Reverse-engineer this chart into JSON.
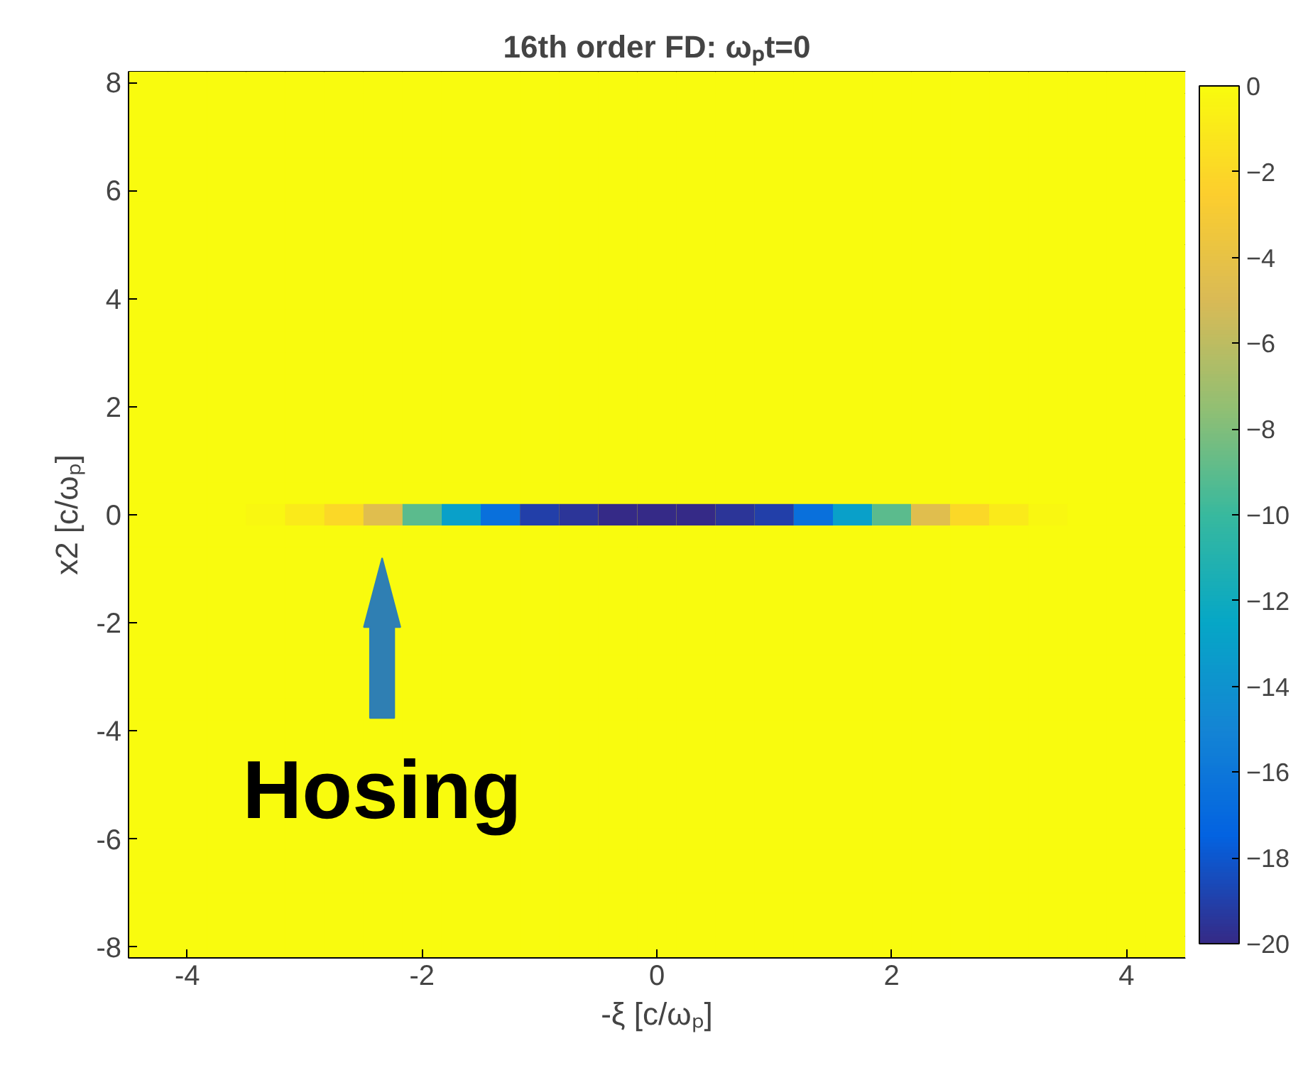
{
  "chart_data": {
    "type": "heatmap",
    "title": "16th order FD: ωₚt=0",
    "xlabel": "-ξ [c/ωₚ]",
    "ylabel": "x2 [c/ωₚ]",
    "clim": [
      -20,
      0
    ],
    "cticks": [
      -20,
      -18,
      -16,
      -14,
      -12,
      -10,
      -8,
      -6,
      -4,
      -2,
      0
    ],
    "annotations": [
      "Hosing"
    ],
    "categories": [
      null,
      "-4",
      null,
      null,
      null,
      null,
      null,
      "-2",
      null,
      null,
      null,
      null,
      null,
      "0",
      null,
      null,
      null,
      null,
      null,
      "2",
      null,
      null,
      null,
      null,
      null,
      "4",
      null
    ],
    "y_categories": [
      "8",
      null,
      null,
      null,
      null,
      "6",
      null,
      null,
      null,
      null,
      "4",
      null,
      null,
      null,
      null,
      "2",
      null,
      null,
      null,
      null,
      "0",
      null,
      null,
      null,
      null,
      "-2",
      null,
      null,
      null,
      null,
      "-4",
      null,
      null,
      null,
      null,
      "-6",
      null,
      null,
      null,
      null,
      "-8"
    ],
    "cells": [
      [
        0,
        0,
        0,
        0,
        0,
        0,
        0,
        0,
        0,
        0,
        0,
        0,
        0,
        0,
        0,
        0,
        0,
        0,
        0,
        0,
        0,
        0,
        0,
        0,
        0,
        0,
        0
      ],
      [
        0,
        0,
        0,
        0,
        0,
        0,
        0,
        0,
        0,
        0,
        0,
        0,
        0,
        0,
        0,
        0,
        0,
        0,
        0,
        0,
        0,
        0,
        0,
        0,
        0,
        0,
        0
      ],
      [
        0,
        0,
        0,
        0,
        0,
        0,
        0,
        0,
        0,
        0,
        0,
        0,
        0,
        0,
        0,
        0,
        0,
        0,
        0,
        0,
        0,
        0,
        0,
        0,
        0,
        0,
        0
      ],
      [
        0,
        0,
        0,
        0,
        0,
        0,
        0,
        0,
        0,
        0,
        0,
        0,
        0,
        0,
        0,
        0,
        0,
        0,
        0,
        0,
        0,
        0,
        0,
        0,
        0,
        0,
        0
      ],
      [
        0,
        0,
        0,
        0,
        0,
        0,
        0,
        0,
        0,
        0,
        0,
        0,
        0,
        0,
        0,
        0,
        0,
        0,
        0,
        0,
        0,
        0,
        0,
        0,
        0,
        0,
        0
      ],
      [
        0,
        0,
        0,
        0,
        0,
        0,
        0,
        0,
        0,
        0,
        0,
        0,
        0,
        0,
        0,
        0,
        0,
        0,
        0,
        0,
        0,
        0,
        0,
        0,
        0,
        0,
        0
      ],
      [
        0,
        0,
        0,
        0,
        0,
        0,
        0,
        0,
        0,
        0,
        0,
        0,
        0,
        0,
        0,
        0,
        0,
        0,
        0,
        0,
        0,
        0,
        0,
        0,
        0,
        0,
        0
      ],
      [
        0,
        0,
        0,
        0,
        0,
        0,
        0,
        0,
        0,
        0,
        0,
        0,
        0,
        0,
        0,
        0,
        0,
        0,
        0,
        0,
        0,
        0,
        0,
        0,
        0,
        0,
        0
      ],
      [
        0,
        0,
        0,
        0,
        0,
        0,
        0,
        0,
        0,
        0,
        0,
        0,
        0,
        0,
        0,
        0,
        0,
        0,
        0,
        0,
        0,
        0,
        0,
        0,
        0,
        0,
        0
      ],
      [
        0,
        0,
        0,
        0,
        0,
        0,
        0,
        0,
        0,
        0,
        0,
        0,
        0,
        0,
        0,
        0,
        0,
        0,
        0,
        0,
        0,
        0,
        0,
        0,
        0,
        0,
        0
      ],
      [
        0,
        0,
        0,
        0,
        0,
        0,
        0,
        0,
        0,
        0,
        0,
        0,
        0,
        0,
        0,
        0,
        0,
        0,
        0,
        0,
        0,
        0,
        0,
        0,
        0,
        0,
        0
      ],
      [
        0,
        0,
        0,
        0,
        0,
        0,
        0,
        0,
        0,
        0,
        0,
        0,
        0,
        0,
        0,
        0,
        0,
        0,
        0,
        0,
        0,
        0,
        0,
        0,
        0,
        0,
        0
      ],
      [
        0,
        0,
        0,
        0,
        0,
        0,
        0,
        0,
        0,
        0,
        0,
        0,
        0,
        0,
        0,
        0,
        0,
        0,
        0,
        0,
        0,
        0,
        0,
        0,
        0,
        0,
        0
      ],
      [
        0,
        0,
        0,
        0,
        0,
        0,
        0,
        0,
        0,
        0,
        0,
        0,
        0,
        0,
        0,
        0,
        0,
        0,
        0,
        0,
        0,
        0,
        0,
        0,
        0,
        0,
        0
      ],
      [
        0,
        0,
        0,
        0,
        0,
        0,
        0,
        0,
        0,
        0,
        0,
        0,
        0,
        0,
        0,
        0,
        0,
        0,
        0,
        0,
        0,
        0,
        0,
        0,
        0,
        0,
        0
      ],
      [
        0,
        0,
        0,
        0,
        0,
        0,
        0,
        0,
        0,
        0,
        0,
        0,
        0,
        0,
        0,
        0,
        0,
        0,
        0,
        0,
        0,
        0,
        0,
        0,
        0,
        0,
        0
      ],
      [
        0,
        0,
        0,
        0,
        0,
        0,
        0,
        0,
        0,
        0,
        0,
        0,
        0,
        0,
        0,
        0,
        0,
        0,
        0,
        0,
        0,
        0,
        0,
        0,
        0,
        0,
        0
      ],
      [
        0,
        0,
        0,
        0,
        0,
        0,
        0,
        0,
        0,
        0,
        0,
        0,
        0,
        0,
        0,
        0,
        0,
        0,
        0,
        0,
        0,
        0,
        0,
        0,
        0,
        0,
        0
      ],
      [
        0,
        0,
        0,
        0,
        0,
        0,
        0,
        0,
        0,
        0,
        0,
        0,
        0,
        0,
        0,
        0,
        0,
        0,
        0,
        0,
        0,
        0,
        0,
        0,
        0,
        0,
        0
      ],
      [
        0,
        0,
        0,
        0,
        0,
        0,
        0,
        0,
        0,
        0,
        0,
        0,
        0,
        0,
        0,
        0,
        0,
        0,
        0,
        0,
        0,
        0,
        0,
        0,
        0,
        0,
        0
      ],
      [
        0,
        0,
        0,
        -0.3,
        -1,
        -2,
        -4.5,
        -9,
        -13,
        -16.5,
        -19,
        -19.5,
        -20,
        -20,
        -20,
        -19.5,
        -19,
        -16.5,
        -13,
        -9,
        -4.5,
        -2,
        -1,
        -0.3,
        0,
        0,
        0
      ],
      [
        0,
        0,
        0,
        0,
        0,
        0,
        0,
        0,
        0,
        0,
        0,
        0,
        0,
        0,
        0,
        0,
        0,
        0,
        0,
        0,
        0,
        0,
        0,
        0,
        0,
        0,
        0
      ],
      [
        0,
        0,
        0,
        0,
        0,
        0,
        null,
        0,
        0,
        0,
        0,
        0,
        0,
        0,
        0,
        0,
        0,
        0,
        0,
        0,
        0,
        0,
        0,
        0,
        0,
        0,
        0
      ],
      [
        0,
        0,
        0,
        0,
        0,
        0,
        null,
        0,
        0,
        0,
        0,
        0,
        0,
        0,
        0,
        0,
        0,
        0,
        0,
        0,
        0,
        0,
        0,
        0,
        0,
        0,
        0
      ],
      [
        0,
        0,
        0,
        0,
        0,
        0,
        null,
        0,
        0,
        0,
        0,
        0,
        0,
        0,
        0,
        0,
        0,
        0,
        0,
        0,
        0,
        0,
        0,
        0,
        0,
        0,
        0
      ],
      [
        0,
        0,
        0,
        0,
        0,
        0,
        null,
        0,
        0,
        0,
        0,
        0,
        0,
        0,
        0,
        0,
        0,
        0,
        0,
        0,
        0,
        0,
        0,
        0,
        0,
        0,
        0
      ],
      [
        0,
        0,
        0,
        0,
        0,
        0,
        null,
        0,
        0,
        0,
        0,
        0,
        0,
        0,
        0,
        0,
        0,
        0,
        0,
        0,
        0,
        0,
        0,
        0,
        0,
        0,
        0
      ],
      [
        0,
        0,
        0,
        0,
        0,
        0,
        null,
        0,
        0,
        0,
        0,
        0,
        0,
        0,
        0,
        0,
        0,
        0,
        0,
        0,
        0,
        0,
        0,
        0,
        0,
        0,
        0
      ],
      [
        0,
        0,
        0,
        0,
        0,
        0,
        null,
        0,
        0,
        0,
        0,
        0,
        0,
        0,
        0,
        0,
        0,
        0,
        0,
        0,
        0,
        0,
        0,
        0,
        0,
        0,
        0
      ],
      [
        0,
        0,
        0,
        0,
        0,
        0,
        null,
        0,
        0,
        0,
        0,
        0,
        0,
        0,
        0,
        0,
        0,
        0,
        0,
        0,
        0,
        0,
        0,
        0,
        0,
        0,
        0
      ],
      [
        0,
        0,
        0,
        0,
        0,
        0,
        0,
        0,
        0,
        0,
        0,
        0,
        0,
        0,
        0,
        0,
        0,
        0,
        0,
        0,
        0,
        0,
        0,
        0,
        0,
        0,
        0
      ],
      [
        0,
        0,
        0,
        0,
        0,
        0,
        0,
        0,
        0,
        0,
        0,
        0,
        0,
        0,
        0,
        0,
        0,
        0,
        0,
        0,
        0,
        0,
        0,
        0,
        0,
        0,
        0
      ],
      [
        0,
        0,
        0,
        0,
        0,
        0,
        0,
        0,
        0,
        0,
        0,
        0,
        0,
        0,
        0,
        0,
        0,
        0,
        0,
        0,
        0,
        0,
        0,
        0,
        0,
        0,
        0
      ],
      [
        0,
        0,
        0,
        0,
        0,
        0,
        0,
        0,
        0,
        0,
        0,
        0,
        0,
        0,
        0,
        0,
        0,
        0,
        0,
        0,
        0,
        0,
        0,
        0,
        0,
        0,
        0
      ],
      [
        0,
        0,
        0,
        0,
        0,
        0,
        0,
        0,
        0,
        0,
        0,
        0,
        0,
        0,
        0,
        0,
        0,
        0,
        0,
        0,
        0,
        0,
        0,
        0,
        0,
        0,
        0
      ],
      [
        0,
        0,
        0,
        0,
        0,
        0,
        0,
        0,
        0,
        0,
        0,
        0,
        0,
        0,
        0,
        0,
        0,
        0,
        0,
        0,
        0,
        0,
        0,
        0,
        0,
        0,
        0
      ],
      [
        0,
        0,
        0,
        0,
        0,
        0,
        0,
        0,
        0,
        0,
        0,
        0,
        0,
        0,
        0,
        0,
        0,
        0,
        0,
        0,
        0,
        0,
        0,
        0,
        0,
        0,
        0
      ],
      [
        0,
        0,
        0,
        0,
        0,
        0,
        0,
        0,
        0,
        0,
        0,
        0,
        0,
        0,
        0,
        0,
        0,
        0,
        0,
        0,
        0,
        0,
        0,
        0,
        0,
        0,
        0
      ],
      [
        0,
        0,
        0,
        0,
        0,
        0,
        0,
        0,
        0,
        0,
        0,
        0,
        0,
        0,
        0,
        0,
        0,
        0,
        0,
        0,
        0,
        0,
        0,
        0,
        0,
        0,
        0
      ],
      [
        0,
        0,
        0,
        0,
        0,
        0,
        0,
        0,
        0,
        0,
        0,
        0,
        0,
        0,
        0,
        0,
        0,
        0,
        0,
        0,
        0,
        0,
        0,
        0,
        0,
        0,
        0
      ],
      [
        0,
        0,
        0,
        0,
        0,
        0,
        0,
        0,
        0,
        0,
        0,
        0,
        0,
        0,
        0,
        0,
        0,
        0,
        0,
        0,
        0,
        0,
        0,
        0,
        0,
        0,
        0
      ]
    ]
  }
}
